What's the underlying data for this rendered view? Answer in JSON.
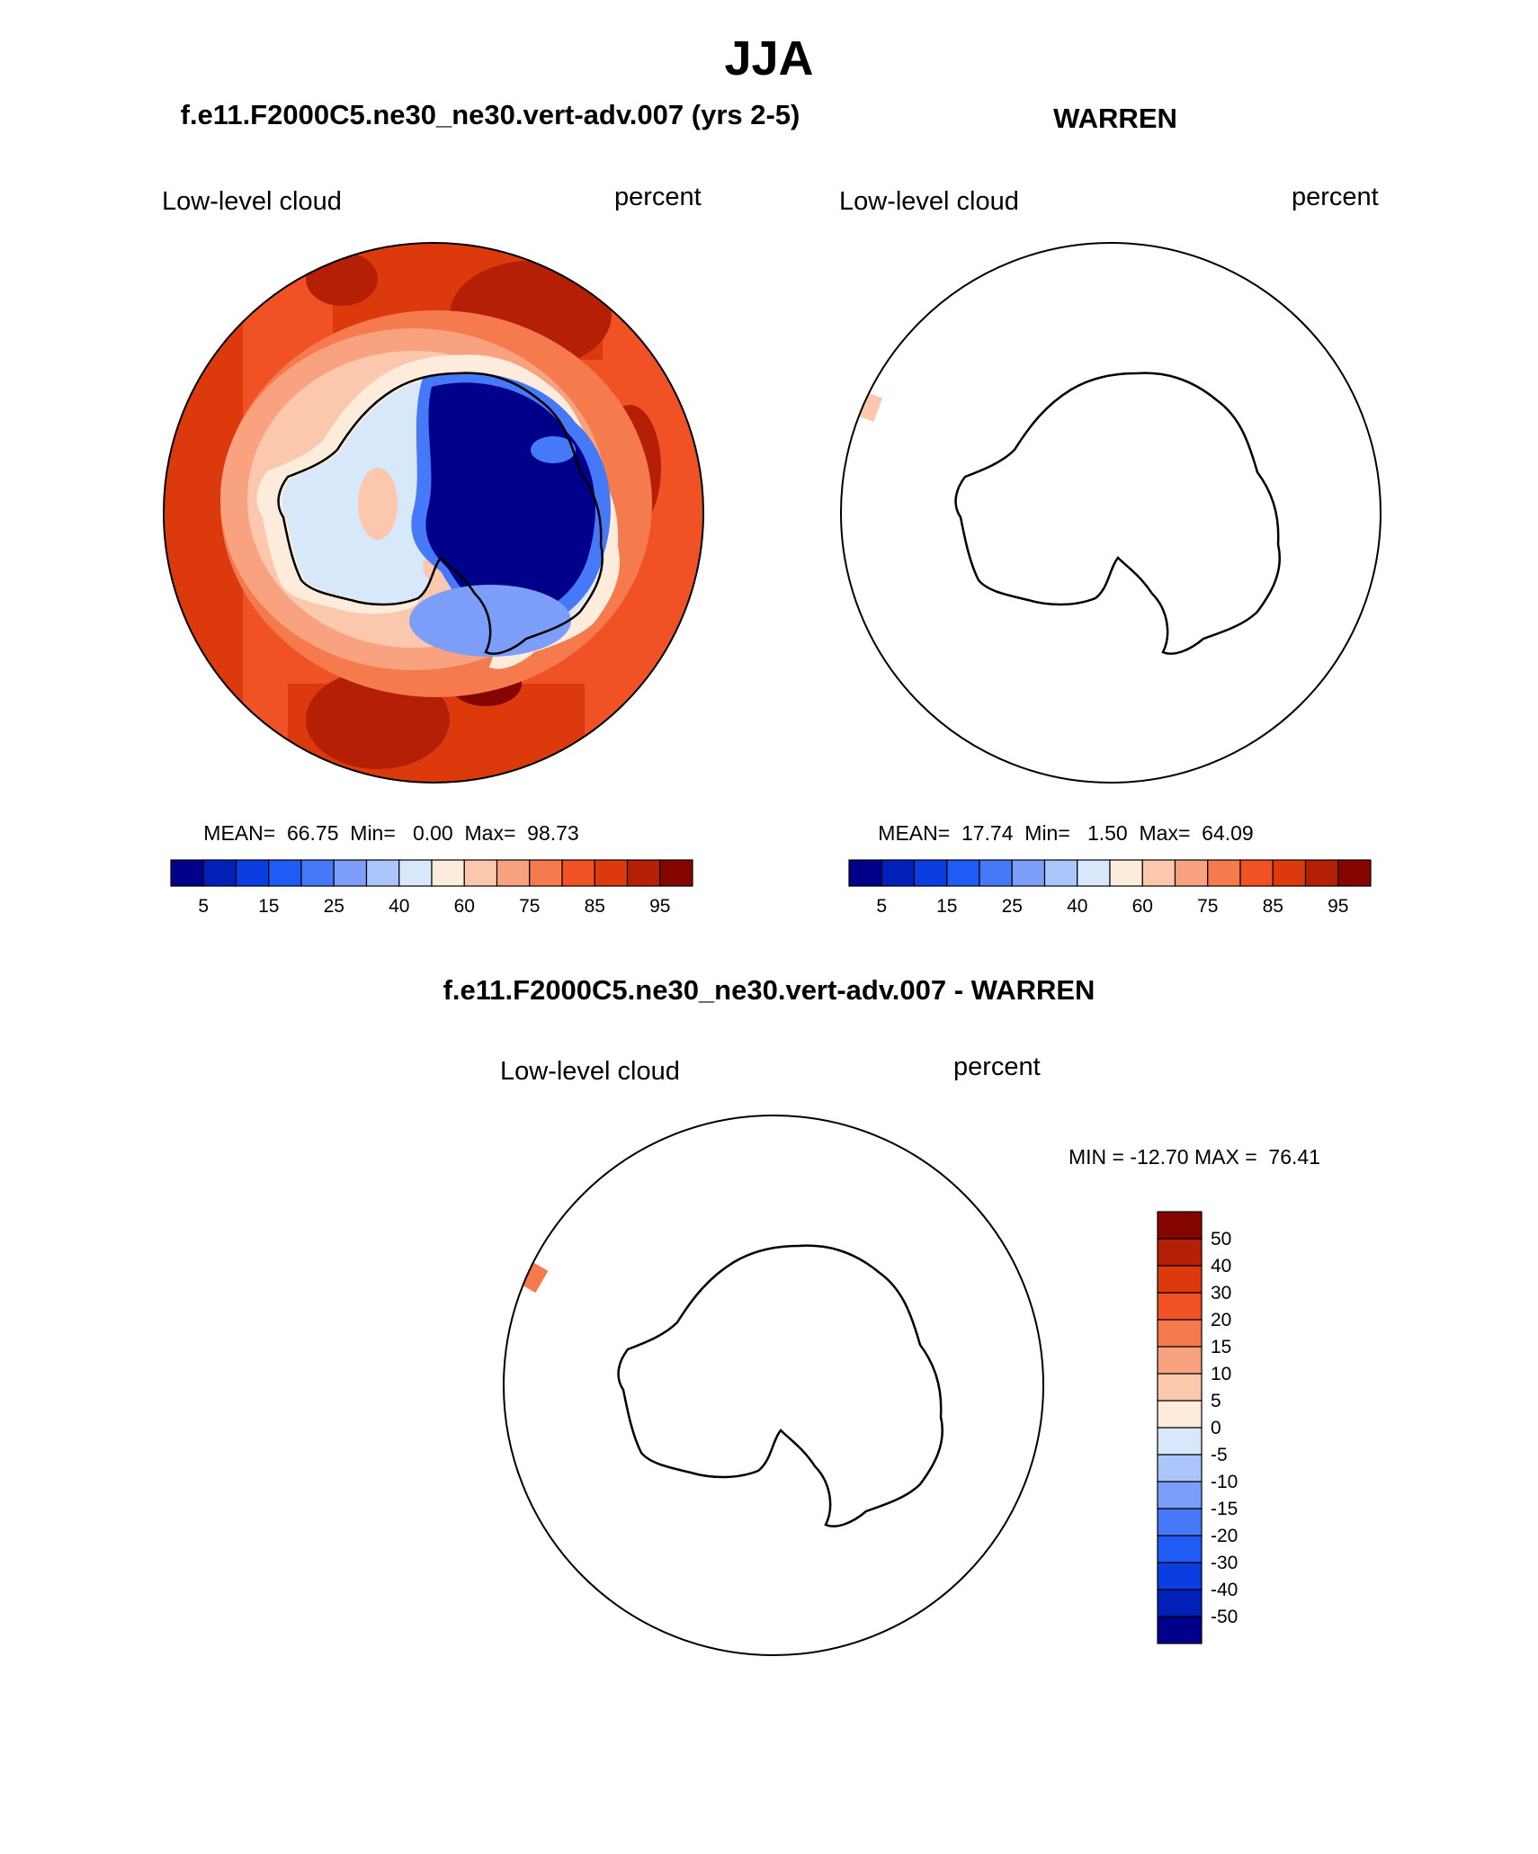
{
  "main_title": "JJA",
  "panels": [
    {
      "title": "f.e11.F2000C5.ne30_ne30.vert-adv.007 (yrs 2-5)",
      "left_label": "Low-level cloud",
      "right_label": "percent",
      "stats": "MEAN=  66.75  Min=   0.00  Max=  98.73"
    },
    {
      "title": "WARREN",
      "left_label": "Low-level cloud",
      "right_label": "percent",
      "stats": "MEAN=  17.74  Min=   1.50  Max=  64.09"
    },
    {
      "title": "f.e11.F2000C5.ne30_ne30.vert-adv.007 - WARREN",
      "left_label": "Low-level cloud",
      "right_label": "percent",
      "stats": "MIN = -12.70 MAX =  76.41"
    }
  ],
  "colorbar_abs": {
    "colors": [
      "#00008a",
      "#0020b8",
      "#0a3ee0",
      "#1f5cf6",
      "#4679f8",
      "#7d9ef8",
      "#acc5fa",
      "#d8e8fb",
      "#fdebdb",
      "#fbc7ad",
      "#f8a27f",
      "#f57a4e",
      "#f05225",
      "#dc3a0c",
      "#b51f06",
      "#850500"
    ],
    "tick_labels": [
      "5",
      "15",
      "25",
      "40",
      "60",
      "75",
      "85",
      "95"
    ]
  },
  "colorbar_diff": {
    "colors": [
      "#00008a",
      "#0020b8",
      "#0a3ee0",
      "#1f5cf6",
      "#4679f8",
      "#7d9ef8",
      "#acc5fa",
      "#d8e8fb",
      "#fdebdb",
      "#fbc7ad",
      "#f8a27f",
      "#f57a4e",
      "#f05225",
      "#dc3a0c",
      "#b51f06",
      "#850500"
    ],
    "tick_labels": [
      "-50",
      "-40",
      "-30",
      "-20",
      "-15",
      "-10",
      "-5",
      "0",
      "5",
      "10",
      "15",
      "20",
      "30",
      "40",
      "50"
    ]
  }
}
